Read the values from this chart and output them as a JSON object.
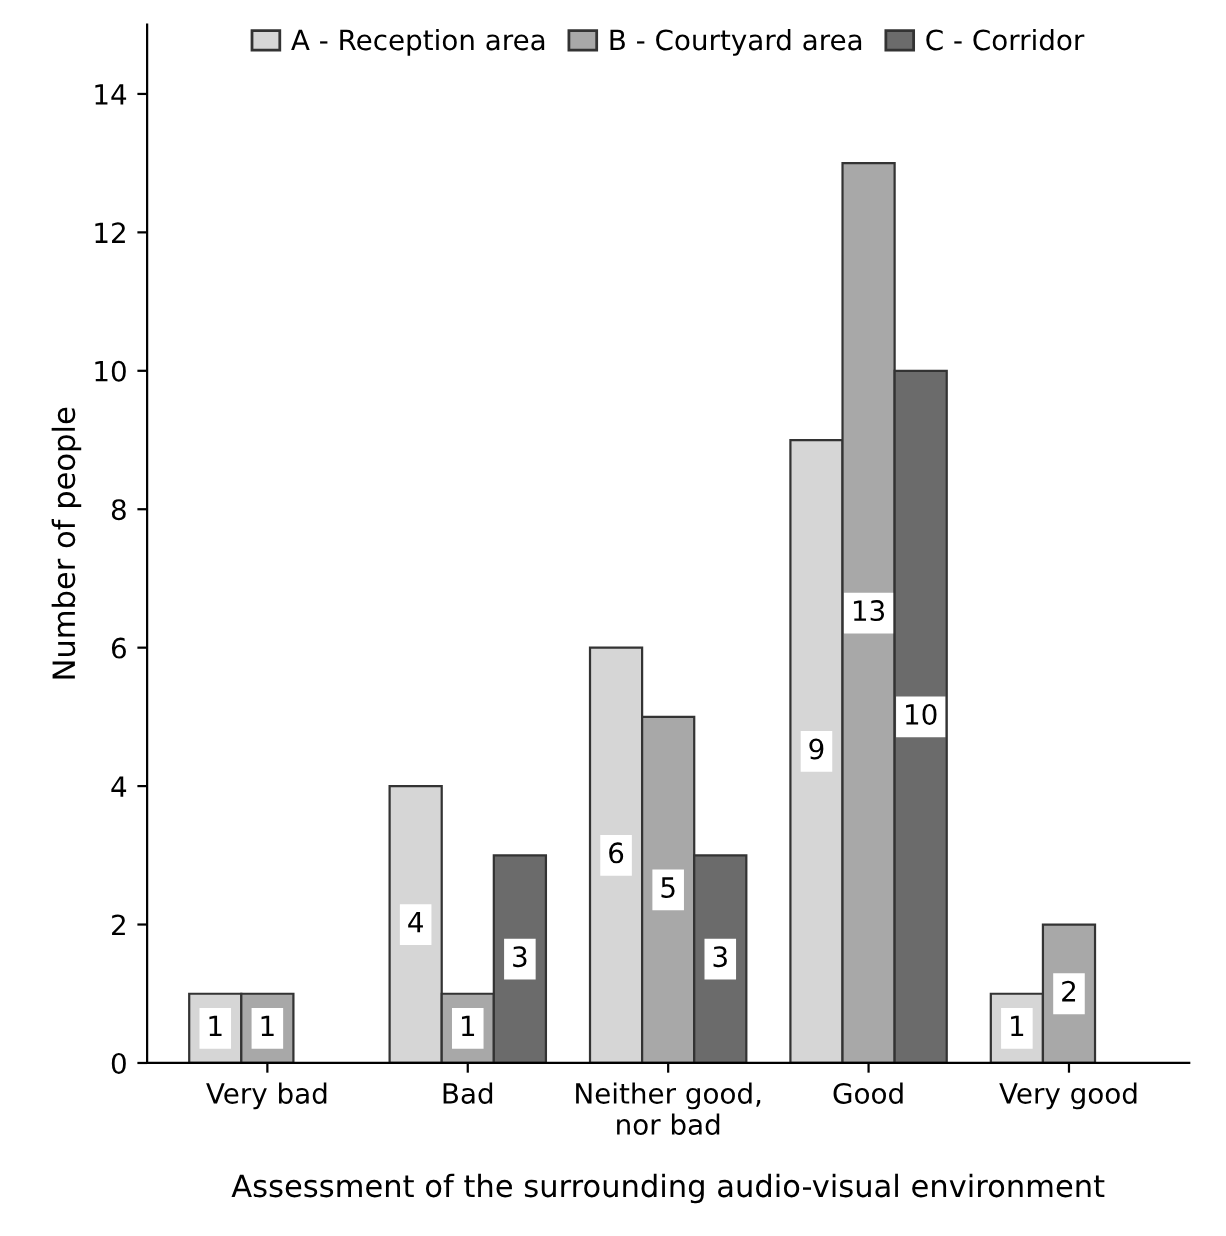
{
  "chart_data": {
    "type": "bar",
    "xlabel": "Assessment of the surrounding audio-visual environment",
    "ylabel": "Number of people",
    "categories": [
      "Very bad",
      "Bad",
      "Neither good,\nnor bad",
      "Good",
      "Very good"
    ],
    "series": [
      {
        "name": "A - Reception area",
        "color": "#d6d6d6",
        "values": [
          1,
          4,
          6,
          9,
          1
        ]
      },
      {
        "name": "B - Courtyard area",
        "color": "#a8a8a8",
        "values": [
          1,
          1,
          5,
          13,
          2
        ]
      },
      {
        "name": "C - Corridor",
        "color": "#6b6b6b",
        "values": [
          null,
          3,
          3,
          10,
          null
        ]
      }
    ],
    "ylim": [
      0,
      15
    ],
    "yticks": [
      0,
      2,
      4,
      6,
      8,
      10,
      12,
      14
    ],
    "grid": false,
    "legend": "top",
    "data_labels": true
  }
}
